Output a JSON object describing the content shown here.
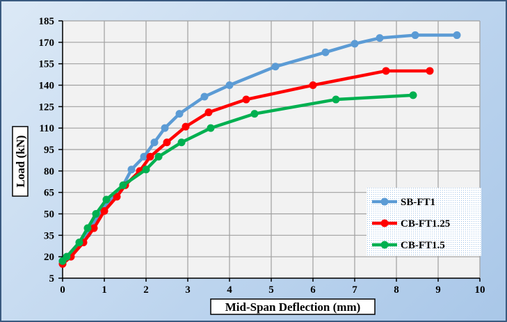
{
  "chart_data": {
    "type": "line",
    "title": "",
    "xlabel": "Mid-Span Deflection (mm)",
    "ylabel": "Load (kN)",
    "xlim": [
      0,
      10
    ],
    "ylim": [
      5,
      185
    ],
    "xticks": [
      0,
      1,
      2,
      3,
      4,
      5,
      6,
      7,
      8,
      9,
      10
    ],
    "yticks": [
      5,
      20,
      35,
      50,
      65,
      80,
      95,
      110,
      125,
      140,
      155,
      170,
      185
    ],
    "grid": true,
    "legend_position": "bottom-right",
    "series": [
      {
        "name": "SB-FT1",
        "color": "#5b9bd5",
        "points": [
          [
            0,
            17
          ],
          [
            0.1,
            20
          ],
          [
            0.4,
            30
          ],
          [
            0.6,
            36
          ],
          [
            0.8,
            47
          ],
          [
            1.05,
            57
          ],
          [
            1.45,
            70
          ],
          [
            1.65,
            81
          ],
          [
            1.95,
            90
          ],
          [
            2.2,
            100
          ],
          [
            2.45,
            110
          ],
          [
            2.8,
            120
          ],
          [
            3.4,
            132
          ],
          [
            4.0,
            140
          ],
          [
            5.1,
            153
          ],
          [
            6.3,
            163
          ],
          [
            7.0,
            169
          ],
          [
            7.6,
            173
          ],
          [
            8.45,
            175
          ],
          [
            9.45,
            175
          ]
        ]
      },
      {
        "name": "CB-FT1.25",
        "color": "#ff0000",
        "points": [
          [
            0,
            15
          ],
          [
            0.2,
            20
          ],
          [
            0.5,
            30
          ],
          [
            0.75,
            40
          ],
          [
            1.0,
            52
          ],
          [
            1.3,
            62
          ],
          [
            1.5,
            70
          ],
          [
            1.85,
            80
          ],
          [
            2.1,
            90
          ],
          [
            2.5,
            100
          ],
          [
            2.95,
            111
          ],
          [
            3.5,
            121
          ],
          [
            4.4,
            130
          ],
          [
            6.0,
            140
          ],
          [
            7.75,
            150
          ],
          [
            8.8,
            150
          ]
        ]
      },
      {
        "name": "CB-FT1.5",
        "color": "#00b050",
        "points": [
          [
            0,
            17
          ],
          [
            0.1,
            20
          ],
          [
            0.4,
            30
          ],
          [
            0.6,
            40
          ],
          [
            0.8,
            50
          ],
          [
            1.05,
            60
          ],
          [
            1.45,
            70
          ],
          [
            2.0,
            81
          ],
          [
            2.3,
            90
          ],
          [
            2.85,
            100
          ],
          [
            3.55,
            110
          ],
          [
            4.6,
            120
          ],
          [
            6.55,
            130
          ],
          [
            8.4,
            133
          ]
        ]
      }
    ]
  }
}
